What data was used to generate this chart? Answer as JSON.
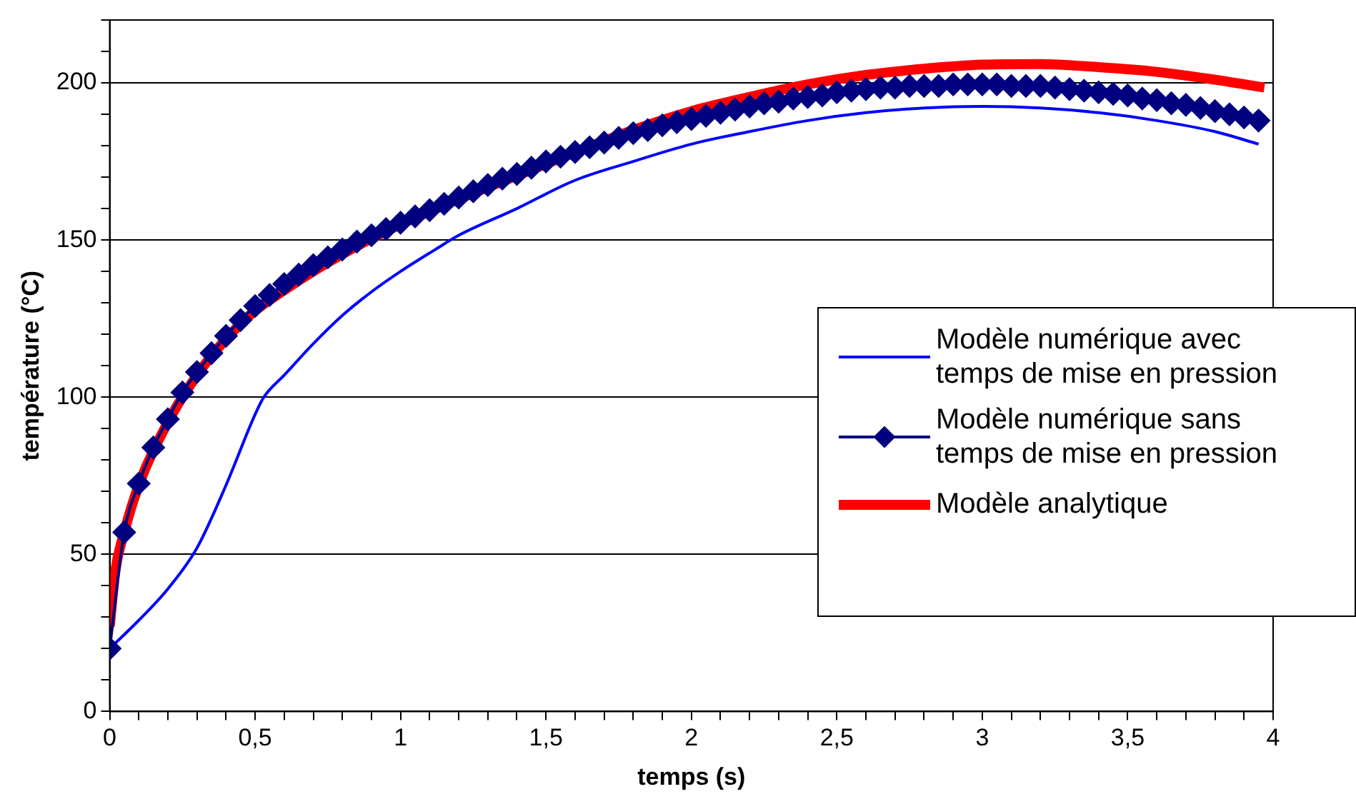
{
  "chart_data": {
    "type": "line",
    "xlabel": "temps (s)",
    "ylabel": "température (°C)",
    "xlim": [
      0,
      4
    ],
    "ylim": [
      0,
      220
    ],
    "xticks": [
      0,
      {
        "value": 0.1,
        "label": null
      },
      {
        "value": 0.2,
        "label": null
      },
      {
        "value": 0.3,
        "label": null
      },
      {
        "value": 0.4,
        "label": null
      },
      {
        "value": 0.5,
        "label": "0,5"
      },
      {
        "value": 0.6,
        "label": null
      },
      {
        "value": 0.7,
        "label": null
      },
      {
        "value": 0.8,
        "label": null
      },
      {
        "value": 0.9,
        "label": null
      },
      1,
      {
        "value": 1.1,
        "label": null
      },
      {
        "value": 1.2,
        "label": null
      },
      {
        "value": 1.3,
        "label": null
      },
      {
        "value": 1.4,
        "label": null
      },
      {
        "value": 1.5,
        "label": "1,5"
      },
      {
        "value": 1.6,
        "label": null
      },
      {
        "value": 1.7,
        "label": null
      },
      {
        "value": 1.8,
        "label": null
      },
      {
        "value": 1.9,
        "label": null
      },
      2,
      {
        "value": 2.1,
        "label": null
      },
      {
        "value": 2.2,
        "label": null
      },
      {
        "value": 2.3,
        "label": null
      },
      {
        "value": 2.4,
        "label": null
      },
      {
        "value": 2.5,
        "label": "2,5"
      },
      {
        "value": 2.6,
        "label": null
      },
      {
        "value": 2.7,
        "label": null
      },
      {
        "value": 2.8,
        "label": null
      },
      {
        "value": 2.9,
        "label": null
      },
      3,
      {
        "value": 3.1,
        "label": null
      },
      {
        "value": 3.2,
        "label": null
      },
      {
        "value": 3.3,
        "label": null
      },
      {
        "value": 3.4,
        "label": null
      },
      {
        "value": 3.5,
        "label": "3,5"
      },
      {
        "value": 3.6,
        "label": null
      },
      {
        "value": 3.7,
        "label": null
      },
      {
        "value": 3.8,
        "label": null
      },
      {
        "value": 3.9,
        "label": null
      },
      4
    ],
    "yticks": [
      0,
      {
        "value": 10,
        "label": null
      },
      {
        "value": 20,
        "label": null
      },
      {
        "value": 30,
        "label": null
      },
      {
        "value": 40,
        "label": null
      },
      50,
      {
        "value": 60,
        "label": null
      },
      {
        "value": 70,
        "label": null
      },
      {
        "value": 80,
        "label": null
      },
      {
        "value": 90,
        "label": null
      },
      100,
      {
        "value": 110,
        "label": null
      },
      {
        "value": 120,
        "label": null
      },
      {
        "value": 130,
        "label": null
      },
      {
        "value": 140,
        "label": null
      },
      150,
      {
        "value": 160,
        "label": null
      },
      {
        "value": 170,
        "label": null
      },
      {
        "value": 180,
        "label": null
      },
      {
        "value": 190,
        "label": null
      },
      200,
      {
        "value": 210,
        "label": null
      },
      {
        "value": 220,
        "label": null
      }
    ],
    "grid": "y",
    "legend": "right",
    "series": [
      {
        "name": "Modèle numérique avec temps de mise en pression",
        "color": "#0000ff",
        "marker": "none",
        "x": [
          0,
          0.1,
          0.2,
          0.3,
          0.4,
          0.5,
          0.53,
          0.6,
          0.7,
          0.8,
          0.9,
          1.0,
          1.12,
          1.2,
          1.4,
          1.6,
          1.8,
          2.0,
          2.2,
          2.4,
          2.6,
          2.8,
          3.0,
          3.2,
          3.4,
          3.6,
          3.8,
          3.95
        ],
        "values": [
          20,
          29,
          39,
          52,
          72,
          94.5,
          100,
          107,
          117,
          126,
          133.5,
          140,
          147,
          151.5,
          160,
          169,
          175,
          180.5,
          184.5,
          188,
          190.5,
          192,
          192.5,
          192,
          190.5,
          188,
          184.5,
          180.5
        ]
      },
      {
        "name": "Modèle numérique sans temps de mise en pression",
        "color": "#000080",
        "marker": "diamond",
        "x": [
          0,
          0.05,
          0.1,
          0.15,
          0.2,
          0.25,
          0.3,
          0.35,
          0.4,
          0.45,
          0.5,
          0.55,
          0.6,
          0.65,
          0.7,
          0.75,
          0.8,
          0.85,
          0.9,
          0.95,
          1,
          1.05,
          1.1,
          1.15,
          1.2,
          1.25,
          1.3,
          1.35,
          1.4,
          1.45,
          1.5,
          1.55,
          1.6,
          1.65,
          1.7,
          1.75,
          1.8,
          1.85,
          1.9,
          1.95,
          2,
          2.05,
          2.1,
          2.15,
          2.2,
          2.25,
          2.3,
          2.35,
          2.4,
          2.45,
          2.5,
          2.55,
          2.6,
          2.65,
          2.7,
          2.75,
          2.8,
          2.85,
          2.9,
          2.95,
          3,
          3.05,
          3.1,
          3.15,
          3.2,
          3.25,
          3.3,
          3.35,
          3.4,
          3.45,
          3.5,
          3.55,
          3.6,
          3.65,
          3.7,
          3.75,
          3.8,
          3.85,
          3.9,
          3.95
        ],
        "values": [
          20,
          57,
          72.5,
          84,
          93,
          101.5,
          108,
          114,
          119.5,
          124.5,
          129,
          132.5,
          136,
          139,
          142,
          144.5,
          147,
          149.5,
          151.5,
          153.5,
          155.5,
          157.5,
          159.5,
          161.5,
          163.5,
          165.5,
          167.5,
          169.5,
          171,
          173,
          175,
          176.5,
          178,
          179.5,
          181,
          182.5,
          184,
          185,
          186.5,
          187.5,
          188.5,
          189.5,
          190.5,
          191.5,
          192.5,
          193.5,
          194,
          195,
          195.5,
          196,
          197,
          197.5,
          198,
          198.5,
          198.5,
          199,
          199,
          199,
          199.5,
          199.5,
          199.5,
          199.5,
          199,
          199,
          199,
          198.5,
          198,
          197.5,
          197,
          196.5,
          196,
          195,
          194.5,
          193.5,
          193,
          192,
          191,
          190,
          189,
          188
        ]
      },
      {
        "name": "Modèle analytique",
        "color": "#ff0000",
        "marker": "none",
        "x": [
          0,
          0.02,
          0.05,
          0.1,
          0.2,
          0.3,
          0.4,
          0.5,
          0.6,
          0.7,
          0.8,
          0.9,
          1.0,
          1.2,
          1.4,
          1.6,
          1.8,
          2.0,
          2.2,
          2.4,
          2.6,
          2.8,
          3.0,
          3.2,
          3.4,
          3.6,
          3.8,
          3.97
        ],
        "values": [
          27,
          45,
          57,
          72,
          92,
          107,
          118.5,
          127.5,
          134,
          140,
          145.5,
          150.5,
          155,
          163,
          170.5,
          null,
          185,
          191,
          195.5,
          199.5,
          202.5,
          204.5,
          205.8,
          206,
          205,
          203.5,
          201,
          198.5
        ]
      }
    ]
  }
}
